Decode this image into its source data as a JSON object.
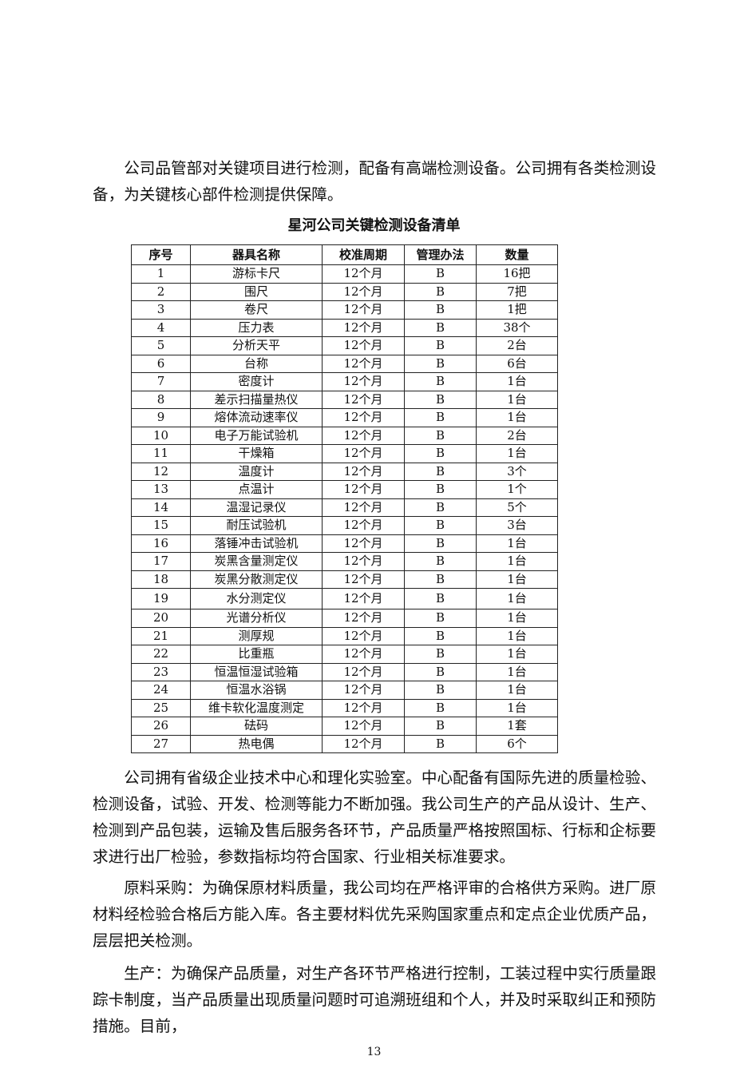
{
  "paragraph1": "公司品管部对关键项目进行检测，配备有高端检测设备。公司拥有各类检测设备，为关键核心部件检测提供保障。",
  "table_title": "星河公司关键检测设备清单",
  "headers": [
    "序号",
    "器具名称",
    "校准周期",
    "管理办法",
    "数量"
  ],
  "rows": [
    [
      "1",
      "游标卡尺",
      "12个月",
      "B",
      "16把"
    ],
    [
      "2",
      "围尺",
      "12个月",
      "B",
      "7把"
    ],
    [
      "3",
      "卷尺",
      "12个月",
      "B",
      "1把"
    ],
    [
      "4",
      "压力表",
      "12个月",
      "B",
      "38个"
    ],
    [
      "5",
      "分析天平",
      "12个月",
      "B",
      "2台"
    ],
    [
      "6",
      "台称",
      "12个月",
      "B",
      "6台"
    ],
    [
      "7",
      "密度计",
      "12个月",
      "B",
      "1台"
    ],
    [
      "8",
      "差示扫描量热仪",
      "12个月",
      "B",
      "1台"
    ],
    [
      "9",
      "熔体流动速率仪",
      "12个月",
      "B",
      "1台"
    ],
    [
      "10",
      "电子万能试验机",
      "12个月",
      "B",
      "2台"
    ],
    [
      "11",
      "干燥箱",
      "12个月",
      "B",
      "1台"
    ],
    [
      "12",
      "温度计",
      "12个月",
      "B",
      "3个"
    ],
    [
      "13",
      "点温计",
      "12个月",
      "B",
      "1个"
    ],
    [
      "14",
      "温湿记录仪",
      "12个月",
      "B",
      "5个"
    ],
    [
      "15",
      "耐压试验机",
      "12个月",
      "B",
      "3台"
    ],
    [
      "16",
      "落锤冲击试验机",
      "12个月",
      "B",
      "1台"
    ],
    [
      "17",
      "炭黑含量测定仪",
      "12个月",
      "B",
      "1台"
    ],
    [
      "18",
      "炭黑分散测定仪",
      "12个月",
      "B",
      "1台"
    ],
    [
      "19",
      "水分测定仪",
      "12个月",
      "B",
      "1台"
    ],
    [
      "20",
      "光谱分析仪",
      "12个月",
      "B",
      "1台"
    ],
    [
      "21",
      "测厚规",
      "12个月",
      "B",
      "1台"
    ],
    [
      "22",
      "比重瓶",
      "12个月",
      "B",
      "1台"
    ],
    [
      "23",
      "恒温恒湿试验箱",
      "12个月",
      "B",
      "1台"
    ],
    [
      "24",
      "恒温水浴锅",
      "12个月",
      "B",
      "1台"
    ],
    [
      "25",
      "维卡软化温度测定",
      "12个月",
      "B",
      "1台"
    ],
    [
      "26",
      "砝码",
      "12个月",
      "B",
      "1套"
    ],
    [
      "27",
      "热电偶",
      "12个月",
      "B",
      "6个"
    ]
  ],
  "paragraph2": "公司拥有省级企业技术中心和理化实验室。中心配备有国际先进的质量检验、检测设备，试验、开发、检测等能力不断加强。我公司生产的产品从设计、生产、检测到产品包装，运输及售后服务各环节，产品质量严格按照国标、行标和企标要求进行出厂检验，参数指标均符合国家、行业相关标准要求。",
  "paragraph3": "原料采购：为确保原材料质量，我公司均在严格评审的合格供方采购。进厂原材料经检验合格后方能入库。各主要材料优先采购国家重点和定点企业优质产品，层层把关检测。",
  "paragraph4": "生产：为确保产品质量，对生产各环节严格进行控制，工装过程中实行质量跟踪卡制度，当产品质量出现质量问题时可追溯班组和个人，并及时采取纠正和预防措施。目前，",
  "page_number": "13"
}
